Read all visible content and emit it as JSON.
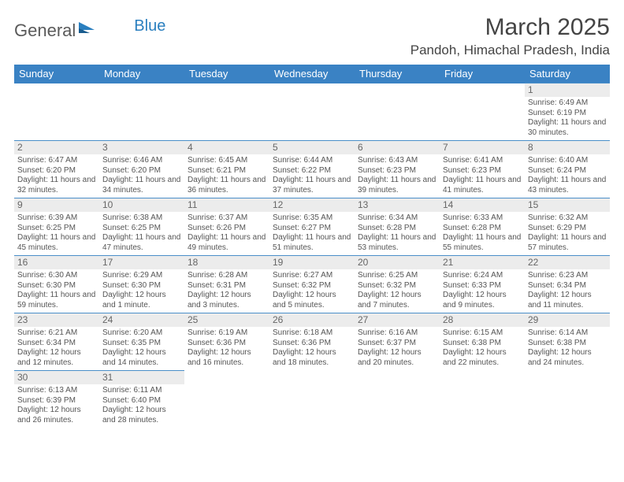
{
  "logo": {
    "text1": "General",
    "text2": "Blue"
  },
  "title": "March 2025",
  "location": "Pandoh, Himachal Pradesh, India",
  "weekdays": [
    "Sunday",
    "Monday",
    "Tuesday",
    "Wednesday",
    "Thursday",
    "Friday",
    "Saturday"
  ],
  "colors": {
    "header_bg": "#3a82c4",
    "cell_border": "#4a8fc9",
    "daynum_bg": "#ececec"
  },
  "first_day_index": 6,
  "days": [
    {
      "n": 1,
      "sunrise": "6:49 AM",
      "sunset": "6:19 PM",
      "daylight": "11 hours and 30 minutes."
    },
    {
      "n": 2,
      "sunrise": "6:47 AM",
      "sunset": "6:20 PM",
      "daylight": "11 hours and 32 minutes."
    },
    {
      "n": 3,
      "sunrise": "6:46 AM",
      "sunset": "6:20 PM",
      "daylight": "11 hours and 34 minutes."
    },
    {
      "n": 4,
      "sunrise": "6:45 AM",
      "sunset": "6:21 PM",
      "daylight": "11 hours and 36 minutes."
    },
    {
      "n": 5,
      "sunrise": "6:44 AM",
      "sunset": "6:22 PM",
      "daylight": "11 hours and 37 minutes."
    },
    {
      "n": 6,
      "sunrise": "6:43 AM",
      "sunset": "6:23 PM",
      "daylight": "11 hours and 39 minutes."
    },
    {
      "n": 7,
      "sunrise": "6:41 AM",
      "sunset": "6:23 PM",
      "daylight": "11 hours and 41 minutes."
    },
    {
      "n": 8,
      "sunrise": "6:40 AM",
      "sunset": "6:24 PM",
      "daylight": "11 hours and 43 minutes."
    },
    {
      "n": 9,
      "sunrise": "6:39 AM",
      "sunset": "6:25 PM",
      "daylight": "11 hours and 45 minutes."
    },
    {
      "n": 10,
      "sunrise": "6:38 AM",
      "sunset": "6:25 PM",
      "daylight": "11 hours and 47 minutes."
    },
    {
      "n": 11,
      "sunrise": "6:37 AM",
      "sunset": "6:26 PM",
      "daylight": "11 hours and 49 minutes."
    },
    {
      "n": 12,
      "sunrise": "6:35 AM",
      "sunset": "6:27 PM",
      "daylight": "11 hours and 51 minutes."
    },
    {
      "n": 13,
      "sunrise": "6:34 AM",
      "sunset": "6:28 PM",
      "daylight": "11 hours and 53 minutes."
    },
    {
      "n": 14,
      "sunrise": "6:33 AM",
      "sunset": "6:28 PM",
      "daylight": "11 hours and 55 minutes."
    },
    {
      "n": 15,
      "sunrise": "6:32 AM",
      "sunset": "6:29 PM",
      "daylight": "11 hours and 57 minutes."
    },
    {
      "n": 16,
      "sunrise": "6:30 AM",
      "sunset": "6:30 PM",
      "daylight": "11 hours and 59 minutes."
    },
    {
      "n": 17,
      "sunrise": "6:29 AM",
      "sunset": "6:30 PM",
      "daylight": "12 hours and 1 minute."
    },
    {
      "n": 18,
      "sunrise": "6:28 AM",
      "sunset": "6:31 PM",
      "daylight": "12 hours and 3 minutes."
    },
    {
      "n": 19,
      "sunrise": "6:27 AM",
      "sunset": "6:32 PM",
      "daylight": "12 hours and 5 minutes."
    },
    {
      "n": 20,
      "sunrise": "6:25 AM",
      "sunset": "6:32 PM",
      "daylight": "12 hours and 7 minutes."
    },
    {
      "n": 21,
      "sunrise": "6:24 AM",
      "sunset": "6:33 PM",
      "daylight": "12 hours and 9 minutes."
    },
    {
      "n": 22,
      "sunrise": "6:23 AM",
      "sunset": "6:34 PM",
      "daylight": "12 hours and 11 minutes."
    },
    {
      "n": 23,
      "sunrise": "6:21 AM",
      "sunset": "6:34 PM",
      "daylight": "12 hours and 12 minutes."
    },
    {
      "n": 24,
      "sunrise": "6:20 AM",
      "sunset": "6:35 PM",
      "daylight": "12 hours and 14 minutes."
    },
    {
      "n": 25,
      "sunrise": "6:19 AM",
      "sunset": "6:36 PM",
      "daylight": "12 hours and 16 minutes."
    },
    {
      "n": 26,
      "sunrise": "6:18 AM",
      "sunset": "6:36 PM",
      "daylight": "12 hours and 18 minutes."
    },
    {
      "n": 27,
      "sunrise": "6:16 AM",
      "sunset": "6:37 PM",
      "daylight": "12 hours and 20 minutes."
    },
    {
      "n": 28,
      "sunrise": "6:15 AM",
      "sunset": "6:38 PM",
      "daylight": "12 hours and 22 minutes."
    },
    {
      "n": 29,
      "sunrise": "6:14 AM",
      "sunset": "6:38 PM",
      "daylight": "12 hours and 24 minutes."
    },
    {
      "n": 30,
      "sunrise": "6:13 AM",
      "sunset": "6:39 PM",
      "daylight": "12 hours and 26 minutes."
    },
    {
      "n": 31,
      "sunrise": "6:11 AM",
      "sunset": "6:40 PM",
      "daylight": "12 hours and 28 minutes."
    }
  ],
  "labels": {
    "sunrise": "Sunrise: ",
    "sunset": "Sunset: ",
    "daylight": "Daylight: "
  }
}
